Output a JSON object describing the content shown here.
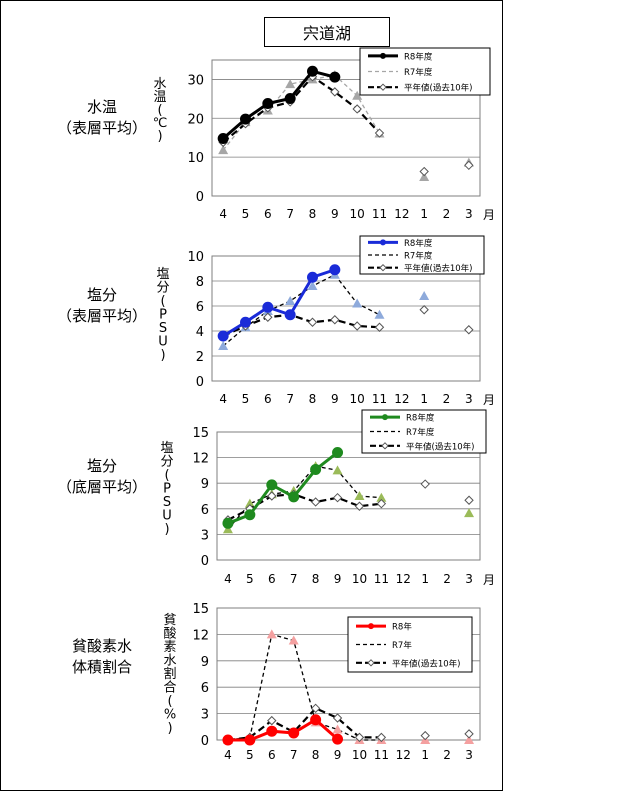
{
  "page": {
    "title": "宍道湖"
  },
  "rows": [
    {
      "label_lines": [
        "水温",
        "（表層平均）"
      ]
    },
    {
      "label_lines": [
        "塩分",
        "（表層平均）"
      ]
    },
    {
      "label_lines": [
        "塩分",
        "（底層平均）"
      ]
    },
    {
      "label_lines": [
        "貧酸素水",
        "体積割合"
      ]
    }
  ],
  "colors": {
    "grid": "#7f7f7f",
    "r7_gray": "#a6a6a6"
  },
  "chart_data": [
    {
      "type": "line",
      "ylabel_chars": [
        "水",
        "温",
        "(",
        "℃",
        ")"
      ],
      "ylim": [
        0,
        35
      ],
      "yticks": [
        0,
        10,
        20,
        30
      ],
      "months": [
        "4",
        "5",
        "6",
        "7",
        "8",
        "9",
        "10",
        "11",
        "12",
        "1",
        "2",
        "3"
      ],
      "month_unit": "月",
      "legend_position": "top-right",
      "series": [
        {
          "name": "R8年度",
          "style": "r8",
          "color": "#000000",
          "values": [
            14.8,
            19.8,
            23.8,
            25.1,
            32.1,
            30.6,
            null,
            null,
            null,
            null,
            null,
            null
          ]
        },
        {
          "name": "R7年度",
          "style": "r7",
          "color": "#a6a6a6",
          "values": [
            11.8,
            19.0,
            22.0,
            28.8,
            30.0,
            31.1,
            25.8,
            16.1,
            null,
            4.9,
            null,
            8.6
          ]
        },
        {
          "name": "平年値(過去10年)",
          "style": "avg",
          "color": "#000000",
          "values": [
            13.8,
            18.6,
            22.7,
            24.2,
            30.7,
            26.8,
            22.4,
            16.2,
            null,
            6.3,
            null,
            7.9
          ]
        }
      ]
    },
    {
      "type": "line",
      "ylabel_chars": [
        "塩",
        "分",
        "(",
        "P",
        "S",
        "U",
        ")"
      ],
      "ylim": [
        0,
        10
      ],
      "yticks": [
        0,
        2,
        4,
        6,
        8,
        10
      ],
      "months": [
        "4",
        "5",
        "6",
        "7",
        "8",
        "9",
        "10",
        "11",
        "12",
        "1",
        "2",
        "3"
      ],
      "month_unit": "月",
      "legend_position": "top-right",
      "series": [
        {
          "name": "R8年度",
          "style": "r8",
          "color": "#1a2bd8",
          "values": [
            3.6,
            4.7,
            5.9,
            5.3,
            8.3,
            8.9,
            null,
            null,
            null,
            null,
            null,
            null
          ]
        },
        {
          "name": "R7年度",
          "style": "r7",
          "color": "#8eaadb",
          "values": [
            2.8,
            4.3,
            5.6,
            6.4,
            7.6,
            8.5,
            6.2,
            5.3,
            null,
            6.8,
            null,
            null
          ]
        },
        {
          "name": "平年値(過去10年)",
          "style": "avg",
          "color": "#000000",
          "values": [
            3.6,
            4.4,
            5.1,
            5.3,
            4.7,
            4.9,
            4.4,
            4.3,
            null,
            5.7,
            null,
            4.1
          ]
        }
      ]
    },
    {
      "type": "line",
      "ylabel_chars": [
        "塩",
        "分",
        "(",
        "P",
        "S",
        "U",
        ")"
      ],
      "ylim": [
        0,
        15
      ],
      "yticks": [
        0,
        3,
        6,
        9,
        12,
        15
      ],
      "months": [
        "4",
        "5",
        "6",
        "7",
        "8",
        "9",
        "10",
        "11",
        "12",
        "1",
        "2",
        "3"
      ],
      "month_unit": "月",
      "legend_position": "top-right",
      "series": [
        {
          "name": "R8年度",
          "style": "r8",
          "color": "#1f8a1f",
          "values": [
            4.3,
            5.3,
            8.8,
            7.4,
            10.6,
            12.6,
            null,
            null,
            null,
            null,
            null,
            null
          ]
        },
        {
          "name": "R7年度",
          "style": "r7",
          "color": "#9bbb59",
          "values": [
            3.6,
            6.6,
            7.7,
            8.1,
            11.0,
            10.5,
            7.5,
            7.3,
            null,
            null,
            null,
            5.5
          ]
        },
        {
          "name": "平年値(過去10年)",
          "style": "avg",
          "color": "#000000",
          "values": [
            4.7,
            6.0,
            7.5,
            7.7,
            6.8,
            7.3,
            6.3,
            6.6,
            null,
            8.9,
            null,
            7.0
          ]
        }
      ]
    },
    {
      "type": "line",
      "ylabel_chars": [
        "貧",
        "酸",
        "素",
        "水",
        "割",
        "合",
        "(",
        "%",
        ")"
      ],
      "ylim": [
        0,
        15
      ],
      "yticks": [
        0,
        3,
        6,
        9,
        12,
        15
      ],
      "months": [
        "4",
        "5",
        "6",
        "7",
        "8",
        "9",
        "10",
        "11",
        "12",
        "1",
        "2",
        "3"
      ],
      "month_unit": "",
      "legend_position": "top-right",
      "series": [
        {
          "name": "R8年",
          "style": "r8",
          "color": "#ff0000",
          "values": [
            0.0,
            0.0,
            1.0,
            0.8,
            2.3,
            0.1,
            null,
            null,
            null,
            null,
            null,
            null
          ]
        },
        {
          "name": "R7年",
          "style": "r7",
          "color": "#f4a0a0",
          "values": [
            0.0,
            0.3,
            12.0,
            11.3,
            2.0,
            1.2,
            0.0,
            0.0,
            null,
            0.0,
            null,
            0.0
          ]
        },
        {
          "name": "平年値(過去10年)",
          "style": "avg",
          "color": "#000000",
          "values": [
            0.0,
            0.3,
            2.2,
            0.9,
            3.6,
            2.5,
            0.3,
            0.3,
            null,
            0.5,
            null,
            0.7
          ]
        }
      ]
    }
  ]
}
